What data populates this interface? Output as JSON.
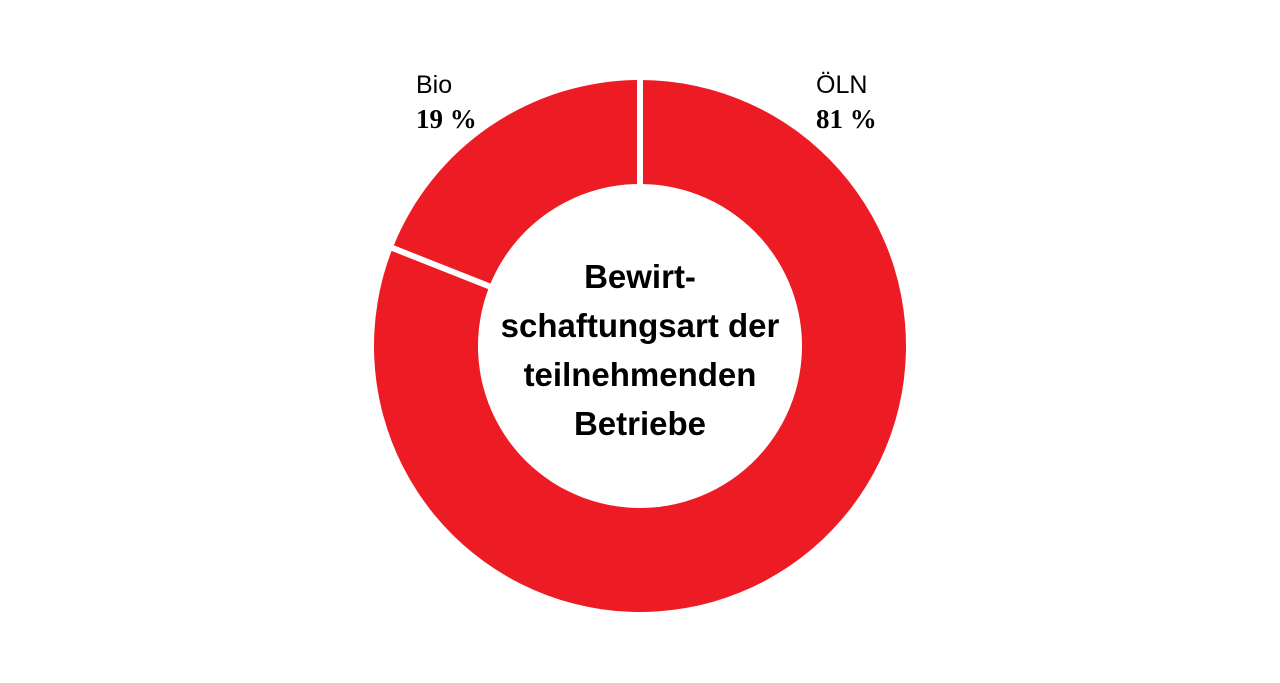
{
  "chart_data": {
    "type": "pie",
    "variant": "donut",
    "title_lines": [
      "Bewirt-",
      "schaftungsart der",
      "teilnehmenden",
      "Betriebe"
    ],
    "categories": [
      "ÖLN",
      "Bio"
    ],
    "values": [
      81,
      19
    ],
    "value_labels": [
      "81 %",
      "19 %"
    ],
    "colors": [
      "#ed1c24",
      "#ed1c24"
    ],
    "separator_color": "#ffffff",
    "legend": "none"
  }
}
